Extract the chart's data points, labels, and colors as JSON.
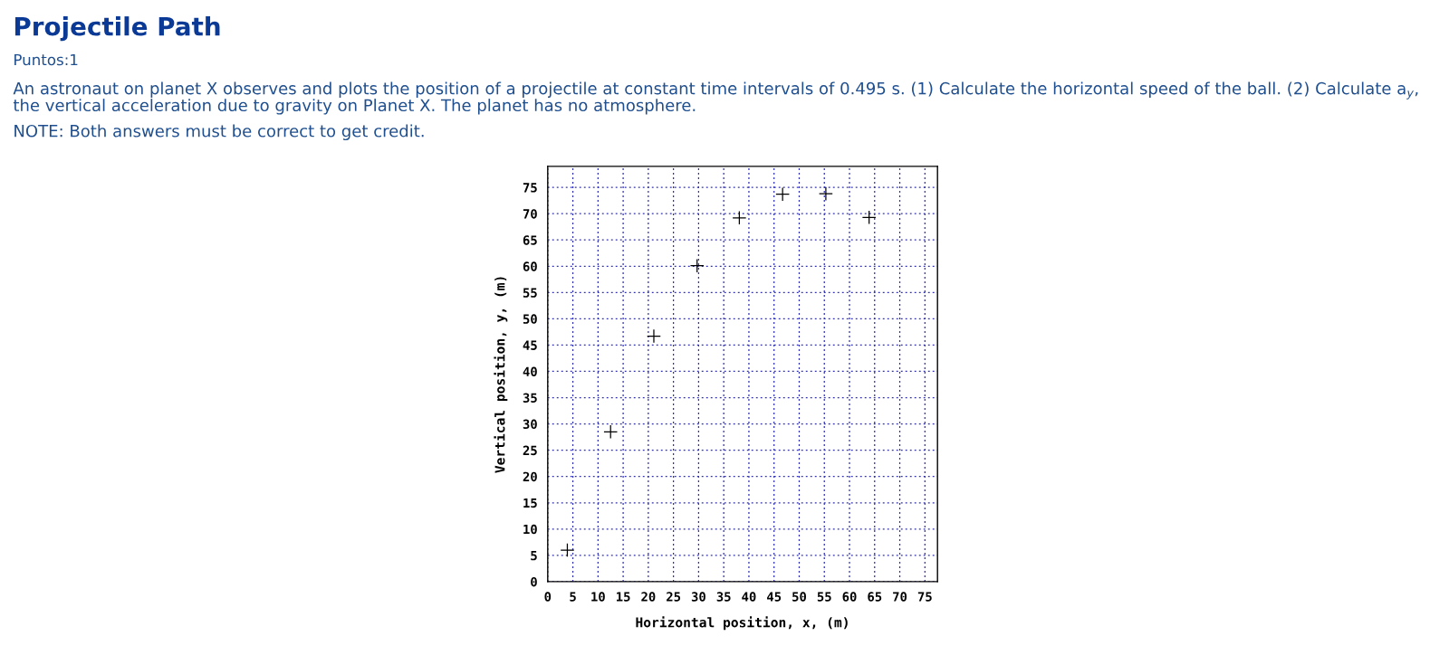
{
  "chart_data": {
    "type": "scatter",
    "title": "Projectile Path",
    "subtitle": "Puntos:1",
    "annotations": [
      "An astronaut on planet X observes and plots the position of a projectile at constant time intervals of 0.495 s. (1) Calculate the horizontal speed of the ball. (2) Calculate a$_{y}$, the vertical acceleration due to gravity on Planet X. The planet has no atmosphere.",
      "NOTE: Both answers must be correct to get credit."
    ],
    "xlabel": "Horizontal position, x, (m)",
    "ylabel": "Vertical position, y, (m)",
    "x": [
      3.9,
      12.5,
      21.1,
      29.7,
      38.1,
      46.7,
      55.3,
      63.9
    ],
    "series": [
      {
        "color": "#000000",
        "values": [
          6.0,
          28.5,
          46.7,
          60.1,
          69.2,
          73.7,
          73.8,
          69.3
        ]
      }
    ],
    "marker": "cross",
    "grid": true,
    "xlim": [
      0,
      77.5
    ],
    "xticks": [
      0,
      5,
      10,
      15,
      20,
      25,
      30,
      35,
      40,
      45,
      50,
      55,
      60,
      65,
      70,
      75
    ],
    "ylim": [
      0,
      79
    ],
    "yticks": [
      0,
      5,
      10,
      15,
      20,
      25,
      30,
      35,
      40,
      45,
      50,
      55,
      60,
      65,
      70,
      75
    ]
  }
}
